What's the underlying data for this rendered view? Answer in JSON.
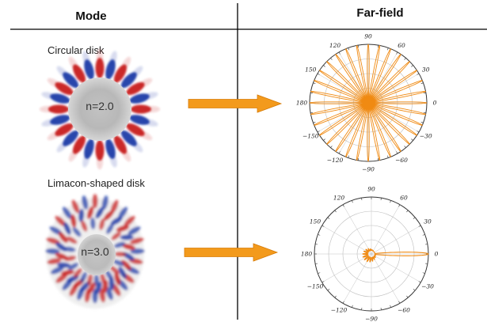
{
  "headers": {
    "mode": "Mode",
    "far_field": "Far-field"
  },
  "rows": [
    {
      "caption": "Circular disk",
      "index_label": "n=2.0",
      "polar_angle_labels": [
        "90",
        "60",
        "30",
        "0",
        "−30",
        "−60",
        "−90",
        "−120",
        "−150",
        "180",
        "150",
        "120"
      ]
    },
    {
      "caption": "Limacon-shaped disk",
      "index_label": "n=3.0",
      "polar_angle_labels": [
        "90",
        "60",
        "30",
        "0",
        "−30",
        "−60",
        "−90",
        "−120",
        "−150",
        "180",
        "150",
        "120"
      ]
    }
  ],
  "colors": {
    "arrow": "#f39a1c",
    "arrow_edge": "#d77c08",
    "pattern": "#f08a12",
    "mode_positive": "#c81e1e",
    "mode_negative": "#1e3ca8",
    "mode_background": "#b8b8b8"
  }
}
